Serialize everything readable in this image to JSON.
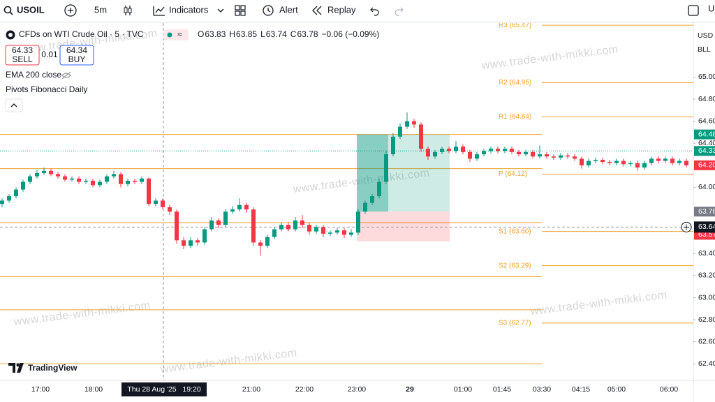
{
  "toolbar": {
    "symbol": "USOIL",
    "interval": "5m",
    "indicators": "Indicators",
    "alert": "Alert",
    "replay": "Replay",
    "cut": "Ur"
  },
  "legend": {
    "title": "CFDs on WTI Crude Oil · 5 · TVC",
    "ohlc_keys": [
      "O",
      "H",
      "L",
      "C"
    ],
    "ohlc_values": [
      "63.83",
      "63.85",
      "63.74",
      "63.78"
    ],
    "change": "−0.06 (−0.09%)"
  },
  "trade": {
    "sell_price": "64.33",
    "sell": "SELL",
    "spread": "0.01",
    "buy_price": "64.34",
    "buy": "BUY"
  },
  "studies": [
    "EMA 200 close",
    "Pivots Fibonacci Daily"
  ],
  "price_axis": {
    "currency": "USD",
    "unit": "BLL",
    "ylim": [
      62.25,
      65.49
    ],
    "ticks": [
      {
        "value": 65,
        "label": "65.00"
      },
      {
        "value": 64.8,
        "label": "64.80"
      },
      {
        "value": 64.6,
        "label": "64.60"
      },
      {
        "value": 64.4,
        "label": "64.40"
      },
      {
        "value": 64,
        "label": "64.00"
      },
      {
        "value": 63.4,
        "label": "63.40"
      },
      {
        "value": 63.2,
        "label": "63.20"
      },
      {
        "value": 63,
        "label": "63.00"
      },
      {
        "value": 62.8,
        "label": "62.80"
      },
      {
        "value": 62.6,
        "label": "62.60"
      },
      {
        "value": 62.4,
        "label": "62.40"
      }
    ],
    "tags": [
      {
        "value": 64.48,
        "label": "64.48",
        "color": "#089981"
      },
      {
        "value": 64.33,
        "label": "64.33",
        "color": "#089981"
      },
      {
        "value": 64.2,
        "label": "64.20",
        "color": "#f23645"
      },
      {
        "value": 63.78,
        "label": "63.78",
        "color": "#787b86"
      },
      {
        "value": 63.57,
        "label": "63.57",
        "color": "#f23645"
      }
    ]
  },
  "crosshair": {
    "price": 63.64,
    "price_label": "63.64",
    "time_label": "Thu 28 Aug '25   19:20"
  },
  "pivots": [
    {
      "label": "R3 (65.47)",
      "value": 65.47
    },
    {
      "label": "R2 (64.95)",
      "value": 64.95
    },
    {
      "label": "R1 (64.64)",
      "value": 64.64
    },
    {
      "label": "P (64.12)",
      "value": 64.12
    },
    {
      "label": "S1 (63.60)",
      "value": 63.6
    },
    {
      "label": "S2 (63.29)",
      "value": 63.29
    },
    {
      "label": "S3 (62.77)",
      "value": 62.77
    }
  ],
  "prev_pivots": [
    64.48,
    64.17,
    63.68,
    63.19,
    62.89,
    62.4
  ],
  "position": {
    "entry": 63.78,
    "target": 64.48,
    "stop": 63.51
  },
  "time_labels": [
    "17:00",
    "18:00",
    "21:00",
    "22:00",
    "23:00",
    "29",
    "01:00",
    "01:45",
    "03:30",
    "04:15",
    "05:00",
    "06:00"
  ],
  "watermark": "www.trade-with-mikki.com",
  "brand": "TradingView",
  "candles": [
    [
      63.85,
      63.9,
      63.82,
      63.88
    ],
    [
      63.88,
      63.94,
      63.86,
      63.92
    ],
    [
      63.92,
      64.0,
      63.9,
      63.98
    ],
    [
      63.98,
      64.07,
      63.96,
      64.05
    ],
    [
      64.05,
      64.12,
      64.03,
      64.1
    ],
    [
      64.1,
      64.16,
      64.08,
      64.13
    ],
    [
      64.13,
      64.18,
      64.11,
      64.15
    ],
    [
      64.15,
      64.17,
      64.1,
      64.12
    ],
    [
      64.12,
      64.14,
      64.08,
      64.1
    ],
    [
      64.1,
      64.12,
      64.05,
      64.07
    ],
    [
      64.07,
      64.1,
      64.05,
      64.08
    ],
    [
      64.08,
      64.1,
      64.03,
      64.05
    ],
    [
      64.05,
      64.08,
      64.03,
      64.06
    ],
    [
      64.06,
      64.08,
      64.0,
      64.02
    ],
    [
      64.02,
      64.07,
      64.0,
      64.05
    ],
    [
      64.05,
      64.12,
      64.03,
      64.1
    ],
    [
      64.1,
      64.15,
      64.08,
      64.12
    ],
    [
      64.12,
      64.14,
      64.0,
      64.03
    ],
    [
      64.03,
      64.08,
      64.01,
      64.06
    ],
    [
      64.06,
      64.08,
      64.03,
      64.05
    ],
    [
      64.05,
      64.1,
      64.03,
      64.08
    ],
    [
      64.08,
      64.09,
      63.83,
      63.85
    ],
    [
      63.85,
      63.9,
      63.83,
      63.88
    ],
    [
      63.88,
      63.9,
      63.8,
      63.82
    ],
    [
      63.82,
      63.84,
      63.75,
      63.78
    ],
    [
      63.78,
      63.8,
      63.49,
      63.52
    ],
    [
      63.52,
      63.55,
      63.44,
      63.47
    ],
    [
      63.47,
      63.55,
      63.45,
      63.52
    ],
    [
      63.52,
      63.54,
      63.47,
      63.5
    ],
    [
      63.5,
      63.64,
      63.48,
      63.62
    ],
    [
      63.62,
      63.73,
      63.6,
      63.7
    ],
    [
      63.7,
      63.72,
      63.63,
      63.66
    ],
    [
      63.66,
      63.8,
      63.64,
      63.78
    ],
    [
      63.78,
      63.83,
      63.76,
      63.8
    ],
    [
      63.8,
      63.9,
      63.78,
      63.84
    ],
    [
      63.84,
      63.86,
      63.77,
      63.8
    ],
    [
      63.8,
      63.82,
      63.47,
      63.5
    ],
    [
      63.5,
      63.52,
      63.38,
      63.47
    ],
    [
      63.47,
      63.57,
      63.45,
      63.55
    ],
    [
      63.55,
      63.64,
      63.53,
      63.62
    ],
    [
      63.62,
      63.68,
      63.6,
      63.66
    ],
    [
      63.66,
      63.68,
      63.6,
      63.62
    ],
    [
      63.62,
      63.73,
      63.6,
      63.7
    ],
    [
      63.7,
      63.75,
      63.63,
      63.66
    ],
    [
      63.66,
      63.68,
      63.57,
      63.6
    ],
    [
      63.6,
      63.66,
      63.58,
      63.64
    ],
    [
      63.64,
      63.66,
      63.55,
      63.58
    ],
    [
      63.58,
      63.61,
      63.56,
      63.59
    ],
    [
      63.59,
      63.63,
      63.57,
      63.61
    ],
    [
      63.61,
      63.63,
      63.54,
      63.57
    ],
    [
      63.57,
      63.62,
      63.55,
      63.59
    ],
    [
      63.59,
      63.8,
      63.57,
      63.78
    ],
    [
      63.78,
      63.88,
      63.76,
      63.86
    ],
    [
      63.86,
      63.94,
      63.84,
      63.92
    ],
    [
      63.92,
      64.08,
      63.9,
      64.05
    ],
    [
      64.05,
      64.33,
      64.03,
      64.3
    ],
    [
      64.3,
      64.49,
      64.28,
      64.46
    ],
    [
      64.46,
      64.58,
      64.44,
      64.55
    ],
    [
      64.55,
      64.68,
      64.53,
      64.6
    ],
    [
      64.6,
      64.62,
      64.54,
      64.57
    ],
    [
      64.57,
      64.59,
      64.32,
      64.35
    ],
    [
      64.35,
      64.37,
      64.25,
      64.28
    ],
    [
      64.28,
      64.34,
      64.26,
      64.32
    ],
    [
      64.32,
      64.37,
      64.3,
      64.35
    ],
    [
      64.35,
      64.37,
      64.31,
      64.33
    ],
    [
      64.33,
      64.42,
      64.31,
      64.37
    ],
    [
      64.37,
      64.39,
      64.3,
      64.32
    ],
    [
      64.32,
      64.34,
      64.23,
      64.26
    ],
    [
      64.26,
      64.32,
      64.24,
      64.3
    ],
    [
      64.3,
      64.35,
      64.28,
      64.33
    ],
    [
      64.33,
      64.37,
      64.31,
      64.35
    ],
    [
      64.35,
      64.37,
      64.31,
      64.33
    ],
    [
      64.33,
      64.37,
      64.31,
      64.35
    ],
    [
      64.35,
      64.37,
      64.3,
      64.32
    ],
    [
      64.32,
      64.34,
      64.28,
      64.3
    ],
    [
      64.3,
      64.34,
      64.28,
      64.32
    ],
    [
      64.32,
      64.34,
      64.26,
      64.28
    ],
    [
      64.28,
      64.38,
      64.26,
      64.3
    ],
    [
      64.3,
      64.32,
      64.26,
      64.28
    ],
    [
      64.28,
      64.3,
      64.25,
      64.27
    ],
    [
      64.27,
      64.31,
      64.25,
      64.29
    ],
    [
      64.29,
      64.31,
      64.26,
      64.28
    ],
    [
      64.28,
      64.3,
      64.24,
      64.26
    ],
    [
      64.26,
      64.28,
      64.17,
      64.2
    ],
    [
      64.2,
      64.26,
      64.18,
      64.24
    ],
    [
      64.24,
      64.27,
      64.22,
      64.25
    ],
    [
      64.25,
      64.27,
      64.21,
      64.23
    ],
    [
      64.23,
      64.25,
      64.2,
      64.22
    ],
    [
      64.22,
      64.26,
      64.2,
      64.24
    ],
    [
      64.24,
      64.26,
      64.19,
      64.21
    ],
    [
      64.21,
      64.24,
      64.19,
      64.22
    ],
    [
      64.22,
      64.24,
      64.15,
      64.18
    ],
    [
      64.18,
      64.24,
      64.16,
      64.22
    ],
    [
      64.22,
      64.28,
      64.2,
      64.26
    ],
    [
      64.26,
      64.28,
      64.22,
      64.24
    ],
    [
      64.24,
      64.28,
      64.22,
      64.26
    ],
    [
      64.26,
      64.28,
      64.2,
      64.22
    ],
    [
      64.22,
      64.26,
      64.2,
      64.24
    ],
    [
      64.24,
      64.26,
      64.18,
      64.2
    ]
  ]
}
